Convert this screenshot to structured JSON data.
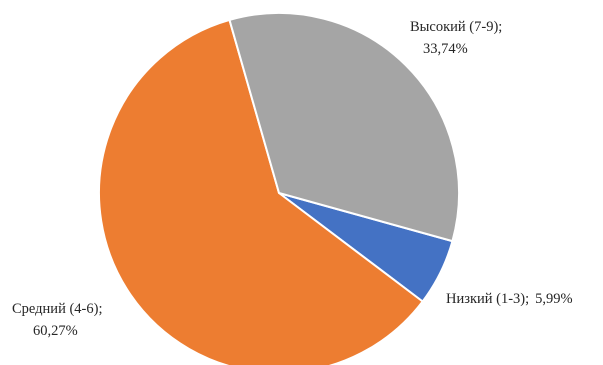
{
  "chart_data": {
    "type": "pie",
    "title": "",
    "categories": [
      "Низкий (1-3)",
      "Средний (4-6)",
      "Высокий (7-9)"
    ],
    "values": [
      5.99,
      60.27,
      33.74
    ],
    "value_labels": [
      "5,99%",
      "60,27%",
      "33,74%"
    ],
    "series": [
      {
        "name": "",
        "values": [
          5.99,
          60.27,
          33.74
        ]
      }
    ],
    "colors": [
      "#4472c4",
      "#ed7d31",
      "#a5a5a5"
    ],
    "legend": "none",
    "data_labels": "outside, category; value",
    "separator": ";",
    "direction": "clockwise"
  }
}
